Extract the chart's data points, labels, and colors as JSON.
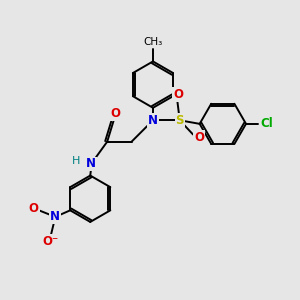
{
  "bg_color": "#e6e6e6",
  "bond_color": "#000000",
  "bond_width": 1.4,
  "atom_colors": {
    "N": "#0000dd",
    "O": "#dd0000",
    "S": "#bbbb00",
    "Cl": "#00aa00",
    "H": "#008080",
    "C": "#000000"
  },
  "font_size_atom": 8.5,
  "fig_size": [
    3.0,
    3.0
  ],
  "dpi": 100
}
